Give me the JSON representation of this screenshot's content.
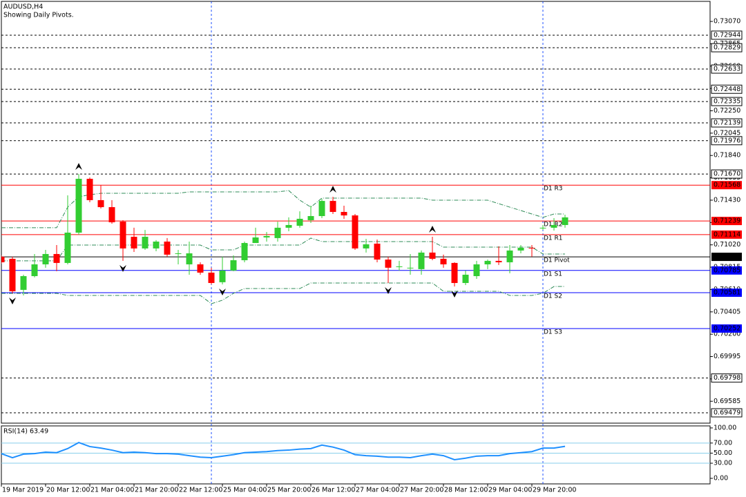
{
  "chart_data": [
    {
      "type": "candlestick",
      "title": "AUDUSD,H4",
      "subtitle": "Showing Daily Pivots.",
      "categories": [
        "19 Mar 2019",
        null,
        null,
        null,
        "20 Mar 12:00",
        null,
        null,
        null,
        "21 Mar 04:00",
        null,
        null,
        null,
        "21 Mar 20:00",
        null,
        null,
        null,
        "22 Mar 12:00",
        null,
        null,
        null,
        "25 Mar 04:00",
        null,
        null,
        null,
        "25 Mar 20:00",
        null,
        null,
        null,
        "26 Mar 12:00",
        null,
        null,
        null,
        "27 Mar 04:00",
        null,
        null,
        null,
        "27 Mar 20:00",
        null,
        null,
        null,
        "28 Mar 12:00",
        null,
        null,
        null,
        "29 Mar 04:00",
        null,
        null,
        null,
        "29 Mar 20:00",
        null,
        null,
        null
      ],
      "open": [
        0.70911,
        0.70892,
        0.70607,
        0.70733,
        0.70841,
        0.70936,
        0.70854,
        0.71132,
        0.71626,
        0.7143,
        0.71366,
        0.71233,
        0.71094,
        0.70987,
        0.70987,
        0.7105,
        0.70936,
        0.70841,
        0.70841,
        0.70765,
        0.70677,
        0.70784,
        0.70879,
        0.71037,
        0.71088,
        0.71082,
        0.71177,
        0.71195,
        0.71246,
        0.71284,
        0.71423,
        0.71322,
        0.7129,
        0.70987,
        0.71031,
        0.70885,
        0.70822,
        0.7081,
        0.70797,
        0.70949,
        0.70892,
        0.70854,
        0.7067,
        0.70733,
        0.70841,
        0.70873,
        0.7086,
        0.70968,
        0.70993,
        0.71177,
        0.71177,
        0.71202
      ],
      "high": [
        0.70923,
        0.70911,
        0.70746,
        0.70936,
        0.70974,
        0.71018,
        0.71474,
        0.7167,
        0.71638,
        0.71569,
        0.7143,
        0.71246,
        0.71177,
        0.71157,
        0.71063,
        0.71082,
        0.70974,
        0.7105,
        0.7086,
        0.7081,
        0.70911,
        0.70923,
        0.7105,
        0.71177,
        0.71138,
        0.71233,
        0.71272,
        0.71328,
        0.71379,
        0.71442,
        0.71461,
        0.71379,
        0.71303,
        0.71075,
        0.71069,
        0.70911,
        0.70873,
        0.70936,
        0.70968,
        0.71094,
        0.7093,
        0.7086,
        0.70784,
        0.70873,
        0.70885,
        0.71006,
        0.71018,
        0.71018,
        0.71018,
        0.71202,
        0.71265,
        0.71297
      ],
      "low": [
        0.70847,
        0.70575,
        0.70556,
        0.70721,
        0.7081,
        0.70778,
        0.70841,
        0.71113,
        0.71411,
        0.71354,
        0.71214,
        0.70873,
        0.70955,
        0.70974,
        0.70961,
        0.70911,
        0.70841,
        0.70746,
        0.70746,
        0.70657,
        0.70657,
        0.70778,
        0.7086,
        0.71037,
        0.7105,
        0.7105,
        0.71145,
        0.71177,
        0.71221,
        0.71265,
        0.71303,
        0.71259,
        0.70974,
        0.70949,
        0.7086,
        0.7067,
        0.70784,
        0.70746,
        0.70746,
        0.70879,
        0.7081,
        0.70638,
        0.70651,
        0.70708,
        0.70797,
        0.70835,
        0.70759,
        0.70942,
        0.70911,
        0.71157,
        0.71151,
        0.71177
      ],
      "close": [
        0.7086,
        0.70594,
        0.70733,
        0.70841,
        0.70936,
        0.70854,
        0.71132,
        0.71626,
        0.7143,
        0.71366,
        0.71227,
        0.70987,
        0.70987,
        0.71094,
        0.7105,
        0.7093,
        0.70942,
        0.70942,
        0.70765,
        0.7067,
        0.70784,
        0.70879,
        0.71037,
        0.71088,
        0.71101,
        0.71177,
        0.71202,
        0.71259,
        0.71284,
        0.71423,
        0.71322,
        0.7129,
        0.70987,
        0.71025,
        0.70885,
        0.7081,
        0.70822,
        0.7081,
        0.70949,
        0.70892,
        0.70841,
        0.7067,
        0.70746,
        0.70841,
        0.70873,
        0.7086,
        0.70968,
        0.70993,
        0.70987,
        0.71177,
        0.71202,
        0.71272
      ],
      "up_color": "#32cd32",
      "down_color": "#ff0000",
      "ylim": [
        0.69384,
        0.73254
      ],
      "yticks": [
        {
          "value": 0.7307,
          "label": "0.73070"
        },
        0.72865,
        {
          "value": 0.7266,
          "label": "0.72660"
        },
        0.72455,
        {
          "value": 0.7225,
          "label": "0.72250"
        },
        0.72045,
        {
          "value": 0.7184,
          "label": "0.71840"
        },
        0.71635,
        {
          "value": 0.7143,
          "label": "0.71430"
        },
        0.71225,
        {
          "value": 0.7102,
          "label": "0.71020"
        },
        0.70815,
        {
          "value": 0.7061,
          "label": "0.70610"
        },
        0.70405,
        {
          "value": 0.702,
          "label": "0.70200"
        },
        0.69995,
        {
          "value": 0.6979,
          "label": "0.69790"
        },
        0.69585
      ],
      "levels": [
        0.72944,
        0.72829,
        0.72633,
        0.72448,
        0.72335,
        0.72139,
        0.71976,
        {
          "value": 0.7167,
          "label": "0.71670"
        },
        0.69798,
        0.69479
      ],
      "level_color": "#000000",
      "pivots": [
        {
          "name": "D1 R3",
          "value": 0.71568,
          "color": "#ff0000"
        },
        {
          "name": "D1 R2",
          "value": 0.71239,
          "color": "#ff0000"
        },
        {
          "name": "D1 R1",
          "value": 0.71114,
          "color": "#ff0000"
        },
        {
          "name": "D1 Pivot",
          "value": 0.7091,
          "label": "0.70910",
          "color": "#000000"
        },
        {
          "name": "D1 S1",
          "value": 0.70785,
          "color": "#0000ff"
        },
        {
          "name": "D1 S2",
          "value": 0.70581,
          "color": "#0000ff"
        },
        {
          "name": "D1 S3",
          "value": 0.70252,
          "color": "#0000ff"
        }
      ],
      "bands": {
        "color": "#2e8b57",
        "upper": [
          0.71177,
          0.71177,
          0.71177,
          0.71177,
          0.71177,
          0.71177,
          0.71366,
          0.71461,
          0.7148,
          0.71493,
          0.71493,
          0.71493,
          0.71493,
          0.71493,
          0.71493,
          0.71493,
          0.71493,
          0.71506,
          0.71506,
          0.71506,
          0.71506,
          0.71506,
          0.71506,
          0.71506,
          0.71506,
          0.71506,
          0.71518,
          0.7143,
          0.71366,
          0.71449,
          0.71449,
          0.71449,
          0.71449,
          0.71449,
          0.71449,
          0.71449,
          0.71449,
          0.71449,
          0.71449,
          0.7143,
          0.7143,
          0.7143,
          0.7143,
          0.7143,
          0.7143,
          0.71398,
          0.71366,
          0.71335,
          0.71303,
          0.71272,
          0.71303,
          0.71303
        ],
        "middle": [
          0.70873,
          0.70873,
          0.70873,
          0.70873,
          0.70873,
          0.70873,
          0.71018,
          0.71018,
          0.71018,
          0.71018,
          0.71018,
          0.71018,
          0.71018,
          0.71018,
          0.71018,
          0.71018,
          0.71018,
          0.71018,
          0.71018,
          0.70974,
          0.70974,
          0.70974,
          0.71018,
          0.71018,
          0.71018,
          0.71018,
          0.71018,
          0.71018,
          0.71082,
          0.7105,
          0.7105,
          0.7105,
          0.7105,
          0.7105,
          0.7105,
          0.7105,
          0.7105,
          0.7105,
          0.7105,
          0.7105,
          0.70999,
          0.70999,
          0.70999,
          0.70999,
          0.70999,
          0.70999,
          0.70999,
          0.70999,
          0.70999,
          0.70936,
          0.70936,
          0.70936
        ],
        "lower": [
          0.70575,
          0.70575,
          0.70575,
          0.70575,
          0.70575,
          0.70575,
          0.70556,
          0.70556,
          0.70556,
          0.70556,
          0.70556,
          0.70556,
          0.70556,
          0.70556,
          0.70556,
          0.70556,
          0.70556,
          0.70556,
          0.70556,
          0.7048,
          0.70512,
          0.70575,
          0.70619,
          0.70619,
          0.70619,
          0.70619,
          0.70619,
          0.70619,
          0.7067,
          0.7067,
          0.7067,
          0.7067,
          0.7067,
          0.7067,
          0.7067,
          0.7067,
          0.7067,
          0.7067,
          0.7067,
          0.7067,
          0.70594,
          0.70594,
          0.70594,
          0.70594,
          0.70594,
          0.70594,
          0.70556,
          0.70556,
          0.70556,
          0.70575,
          0.70638,
          0.70638
        ]
      },
      "fractals_up": [
        7,
        30,
        39
      ],
      "fractals_down": [
        1,
        11,
        20,
        35,
        41
      ]
    },
    {
      "type": "line",
      "title": "RSI(14) 63.49",
      "values": [
        49,
        41,
        48,
        49,
        52,
        51,
        59,
        71,
        63,
        60,
        56,
        51,
        52,
        51,
        49,
        49,
        48,
        45,
        42,
        41,
        44,
        47,
        51,
        52,
        53,
        55,
        56,
        58,
        59,
        66,
        62,
        56,
        47,
        45,
        44,
        42,
        42,
        41,
        45,
        48,
        45,
        37,
        40,
        44,
        45,
        45,
        49,
        51,
        53,
        60,
        60,
        63.49
      ],
      "color": "#1e90ff",
      "ylim": [
        -11,
        104
      ],
      "yticks": [
        {
          "value": 100,
          "label": "100.00"
        },
        {
          "value": 70,
          "label": "70.00"
        },
        {
          "value": 50,
          "label": "50.00"
        },
        {
          "value": 30,
          "label": "30.00"
        },
        {
          "value": 0,
          "label": "0.00"
        }
      ],
      "levels": [
        70,
        50,
        30
      ],
      "level_color": "#87ceeb"
    }
  ]
}
